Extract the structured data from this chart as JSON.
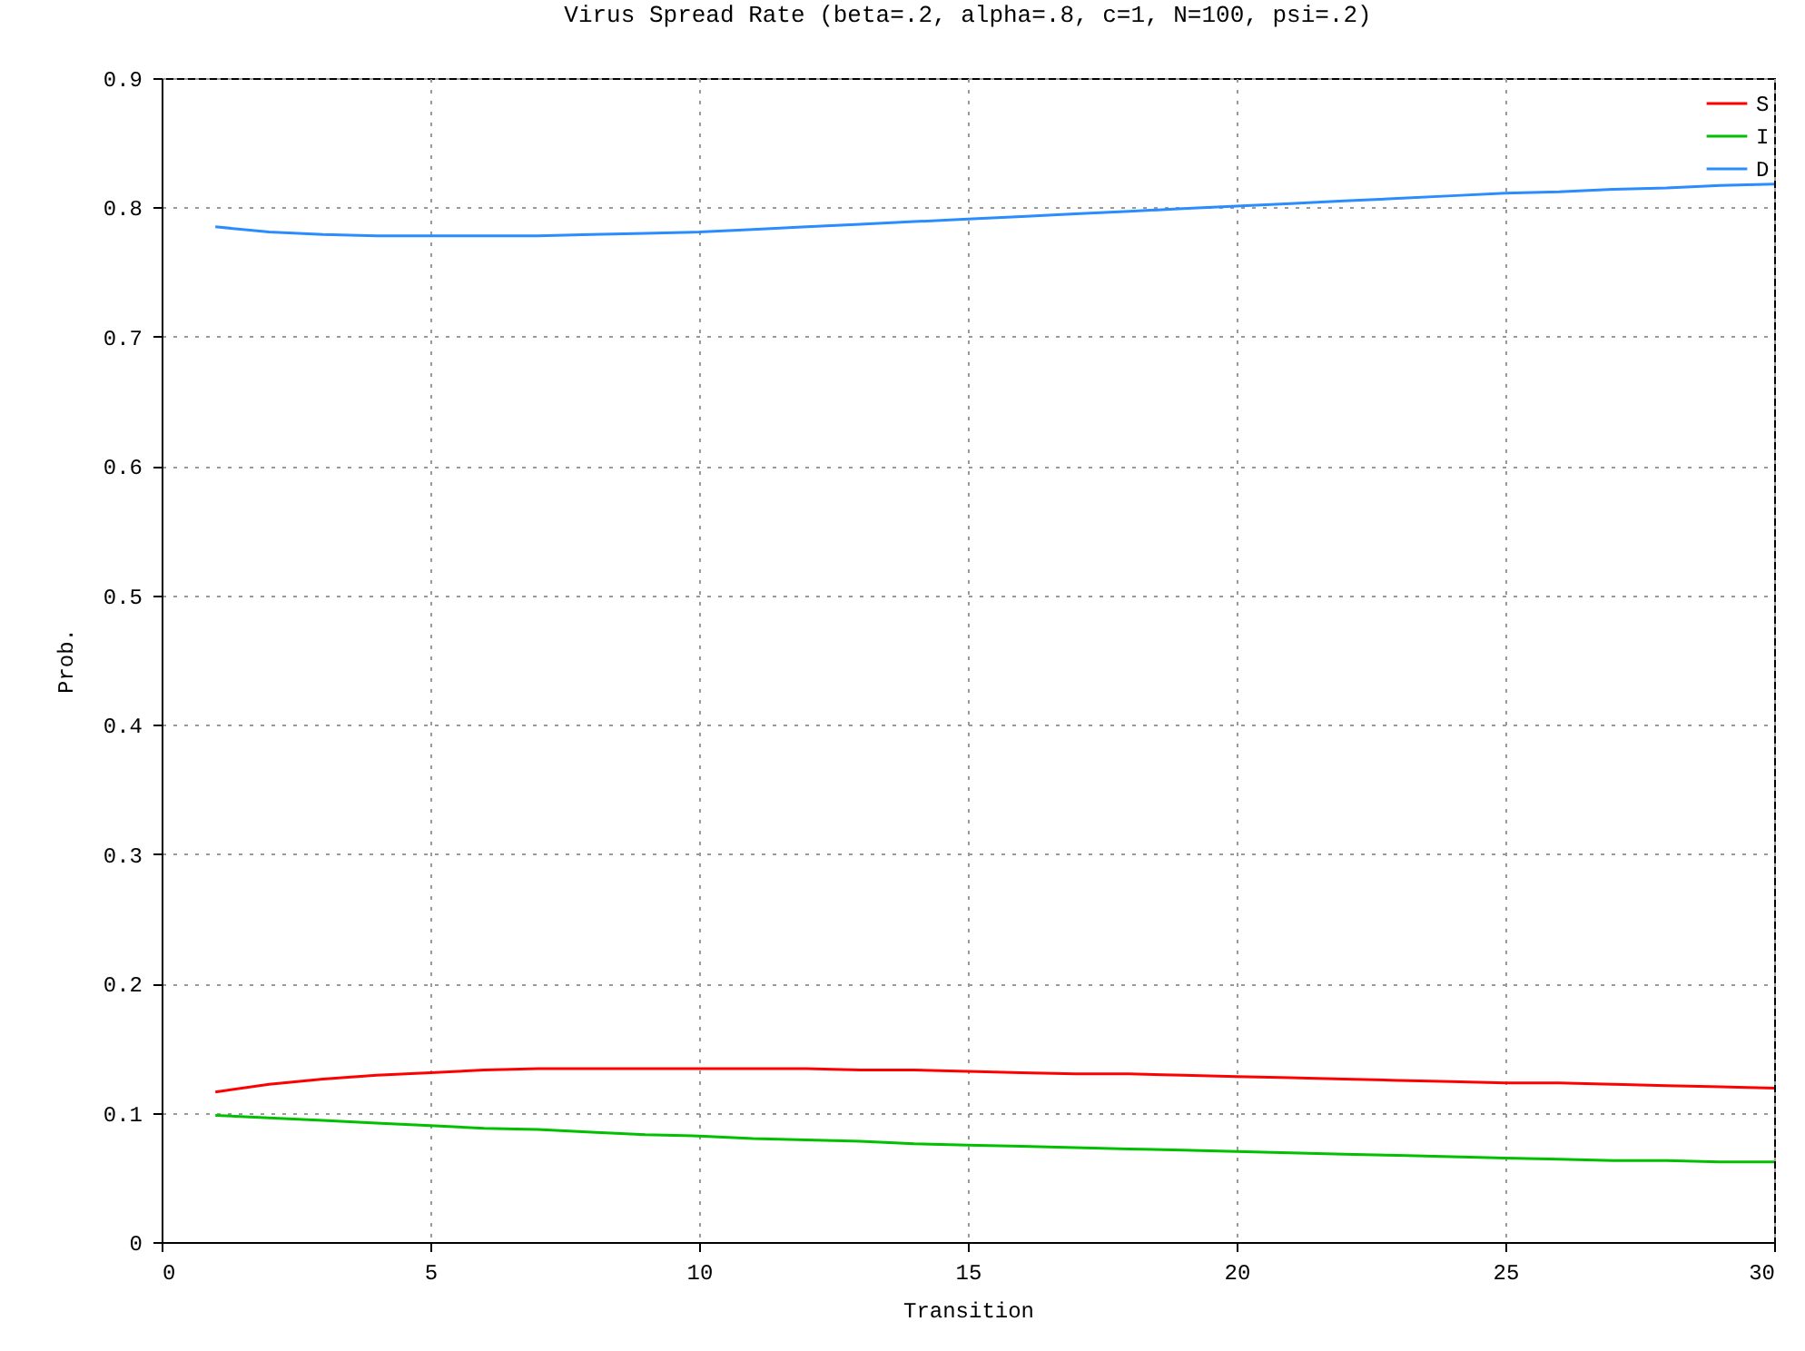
{
  "chart_data": {
    "type": "line",
    "title": "Virus Spread Rate (beta=.2, alpha=.8, c=1, N=100, psi=.2)",
    "xlabel": "Transition",
    "ylabel": "Prob.",
    "x": [
      1,
      2,
      3,
      4,
      5,
      6,
      7,
      8,
      9,
      10,
      11,
      12,
      13,
      14,
      15,
      16,
      17,
      18,
      19,
      20,
      21,
      22,
      23,
      24,
      25,
      26,
      27,
      28,
      29,
      30
    ],
    "series": [
      {
        "name": "S",
        "color": "#ff0000",
        "values": [
          0.116,
          0.122,
          0.126,
          0.129,
          0.131,
          0.133,
          0.134,
          0.134,
          0.134,
          0.134,
          0.134,
          0.134,
          0.133,
          0.133,
          0.132,
          0.131,
          0.13,
          0.13,
          0.129,
          0.128,
          0.127,
          0.126,
          0.125,
          0.124,
          0.123,
          0.123,
          0.122,
          0.121,
          0.12,
          0.119
        ]
      },
      {
        "name": "I",
        "color": "#00c000",
        "values": [
          0.098,
          0.096,
          0.094,
          0.092,
          0.09,
          0.088,
          0.087,
          0.085,
          0.083,
          0.082,
          0.08,
          0.079,
          0.078,
          0.076,
          0.075,
          0.074,
          0.073,
          0.072,
          0.071,
          0.07,
          0.069,
          0.068,
          0.067,
          0.066,
          0.065,
          0.064,
          0.063,
          0.063,
          0.062,
          0.062
        ]
      },
      {
        "name": "D",
        "color": "#2a8cff",
        "values": [
          0.785,
          0.781,
          0.779,
          0.778,
          0.778,
          0.778,
          0.778,
          0.779,
          0.78,
          0.781,
          0.783,
          0.785,
          0.787,
          0.789,
          0.791,
          0.793,
          0.795,
          0.797,
          0.799,
          0.801,
          0.803,
          0.805,
          0.807,
          0.809,
          0.811,
          0.812,
          0.814,
          0.815,
          0.817,
          0.818
        ]
      }
    ],
    "xlim": [
      0,
      30
    ],
    "xticks": [
      0,
      5,
      10,
      15,
      20,
      25,
      30
    ],
    "ylim": [
      0,
      0.9
    ],
    "yticks": [
      0,
      0.1,
      0.2,
      0.3,
      0.4,
      0.5,
      0.6,
      0.7,
      0.8,
      0.9
    ],
    "grid": true,
    "legend": "top right",
    "line_style": "solid"
  }
}
